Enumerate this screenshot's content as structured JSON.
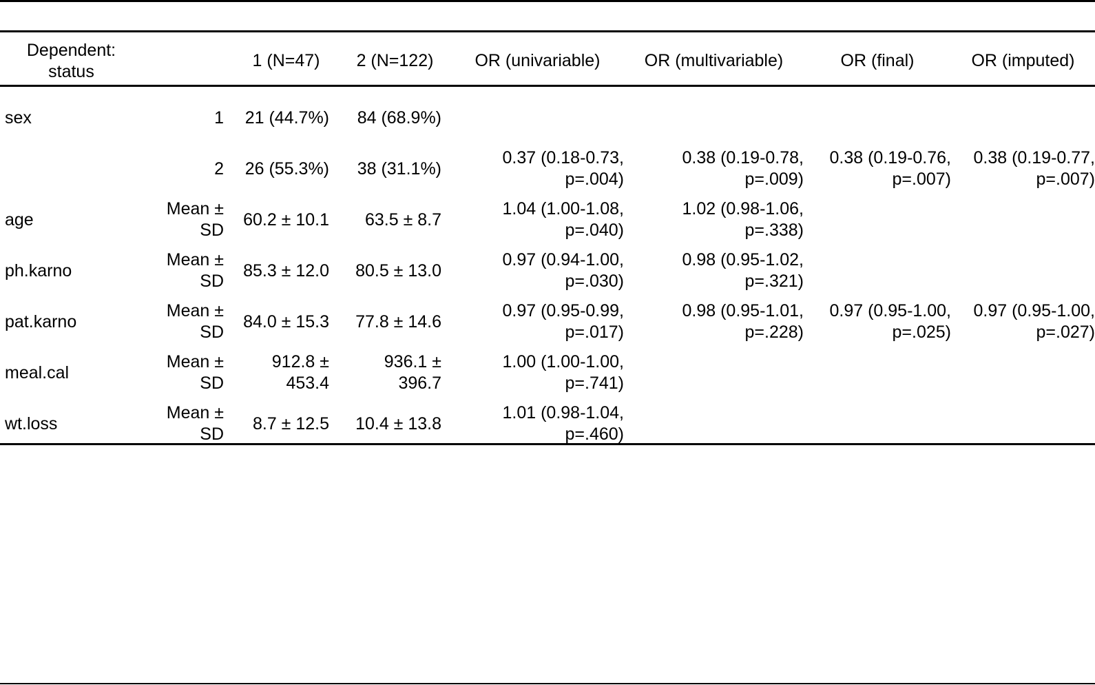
{
  "table": {
    "headers": [
      "Dependent: status",
      "",
      "1 (N=47)",
      "2 (N=122)",
      "OR (univariable)",
      "OR (multivariable)",
      "OR (final)",
      "OR (imputed)"
    ],
    "rows": [
      [
        "sex",
        "1",
        "21 (44.7%)",
        "84 (68.9%)",
        "",
        "",
        "",
        ""
      ],
      [
        "",
        "2",
        "26 (55.3%)",
        "38 (31.1%)",
        "0.37 (0.18-0.73, p=.004)",
        "0.38 (0.19-0.78, p=.009)",
        "0.38 (0.19-0.76, p=.007)",
        "0.38 (0.19-0.77, p=.007)"
      ],
      [
        "age",
        "Mean ± SD",
        "60.2 ± 10.1",
        "63.5 ± 8.7",
        "1.04 (1.00-1.08, p=.040)",
        "1.02 (0.98-1.06, p=.338)",
        "",
        ""
      ],
      [
        "ph.karno",
        "Mean ± SD",
        "85.3 ± 12.0",
        "80.5 ± 13.0",
        "0.97 (0.94-1.00, p=.030)",
        "0.98 (0.95-1.02, p=.321)",
        "",
        ""
      ],
      [
        "pat.karno",
        "Mean ± SD",
        "84.0 ± 15.3",
        "77.8 ± 14.6",
        "0.97 (0.95-0.99, p=.017)",
        "0.98 (0.95-1.01, p=.228)",
        "0.97 (0.95-1.00, p=.025)",
        "0.97 (0.95-1.00, p=.027)"
      ],
      [
        "meal.cal",
        "Mean ± SD",
        "912.8 ± 453.4",
        "936.1 ± 396.7",
        "1.00 (1.00-1.00, p=.741)",
        "",
        "",
        ""
      ],
      [
        "wt.loss",
        "Mean ± SD",
        "8.7 ± 12.5",
        "10.4 ± 13.8",
        "1.01 (0.98-1.04, p=.460)",
        "",
        "",
        ""
      ]
    ]
  }
}
